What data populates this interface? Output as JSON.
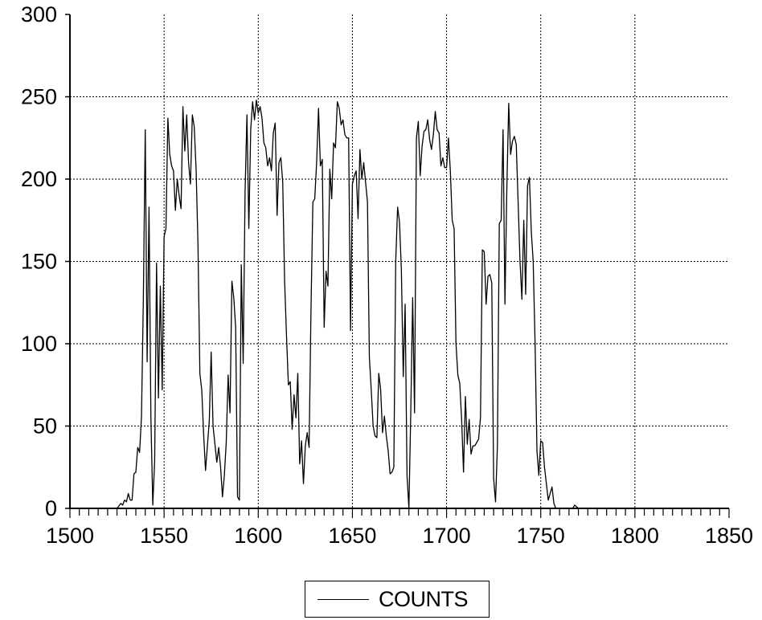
{
  "chart_data": {
    "type": "line",
    "xlim": [
      1500,
      1850
    ],
    "ylim": [
      0,
      300
    ],
    "x_ticks": [
      1500,
      1550,
      1600,
      1650,
      1700,
      1750,
      1800,
      1850
    ],
    "y_ticks": [
      0,
      50,
      100,
      150,
      200,
      250,
      300
    ],
    "grid": true,
    "legend_position": "bottom-center",
    "series": [
      {
        "name": "COUNTS",
        "color": "#000000",
        "points": [
          [
            1500,
            0
          ],
          [
            1510,
            0
          ],
          [
            1520,
            0
          ],
          [
            1525,
            0
          ],
          [
            1527,
            3
          ],
          [
            1528,
            2
          ],
          [
            1529,
            5
          ],
          [
            1530,
            4
          ],
          [
            1531,
            9
          ],
          [
            1532,
            5
          ],
          [
            1533,
            5
          ],
          [
            1534,
            21
          ],
          [
            1535,
            22
          ],
          [
            1536,
            37
          ],
          [
            1537,
            34
          ],
          [
            1538,
            56
          ],
          [
            1539,
            128
          ],
          [
            1540,
            230
          ],
          [
            1541,
            89
          ],
          [
            1542,
            183
          ],
          [
            1543,
            55
          ],
          [
            1544,
            2
          ],
          [
            1545,
            29
          ],
          [
            1546,
            149
          ],
          [
            1547,
            67
          ],
          [
            1548,
            135
          ],
          [
            1549,
            72
          ],
          [
            1550,
            165
          ],
          [
            1551,
            170
          ],
          [
            1552,
            237
          ],
          [
            1553,
            215
          ],
          [
            1554,
            208
          ],
          [
            1555,
            205
          ],
          [
            1556,
            181
          ],
          [
            1557,
            200
          ],
          [
            1558,
            190
          ],
          [
            1559,
            182
          ],
          [
            1560,
            244
          ],
          [
            1561,
            217
          ],
          [
            1562,
            239
          ],
          [
            1563,
            210
          ],
          [
            1564,
            197
          ],
          [
            1565,
            239
          ],
          [
            1566,
            232
          ],
          [
            1567,
            206
          ],
          [
            1568,
            160
          ],
          [
            1569,
            82
          ],
          [
            1570,
            72
          ],
          [
            1571,
            45
          ],
          [
            1572,
            23
          ],
          [
            1573,
            38
          ],
          [
            1574,
            53
          ],
          [
            1575,
            95
          ],
          [
            1576,
            50
          ],
          [
            1577,
            39
          ],
          [
            1578,
            28
          ],
          [
            1579,
            37
          ],
          [
            1580,
            25
          ],
          [
            1581,
            7
          ],
          [
            1582,
            20
          ],
          [
            1583,
            40
          ],
          [
            1584,
            81
          ],
          [
            1585,
            58
          ],
          [
            1586,
            138
          ],
          [
            1587,
            128
          ],
          [
            1588,
            110
          ],
          [
            1589,
            7
          ],
          [
            1590,
            5
          ],
          [
            1591,
            148
          ],
          [
            1592,
            88
          ],
          [
            1593,
            192
          ],
          [
            1594,
            239
          ],
          [
            1595,
            170
          ],
          [
            1596,
            230
          ],
          [
            1597,
            247
          ],
          [
            1598,
            236
          ],
          [
            1599,
            248
          ],
          [
            1600,
            240
          ],
          [
            1601,
            244
          ],
          [
            1602,
            237
          ],
          [
            1603,
            222
          ],
          [
            1604,
            219
          ],
          [
            1605,
            208
          ],
          [
            1606,
            213
          ],
          [
            1607,
            205
          ],
          [
            1608,
            228
          ],
          [
            1609,
            234
          ],
          [
            1610,
            178
          ],
          [
            1611,
            210
          ],
          [
            1612,
            213
          ],
          [
            1613,
            198
          ],
          [
            1614,
            138
          ],
          [
            1615,
            105
          ],
          [
            1616,
            75
          ],
          [
            1617,
            77
          ],
          [
            1618,
            48
          ],
          [
            1619,
            69
          ],
          [
            1620,
            55
          ],
          [
            1621,
            82
          ],
          [
            1622,
            27
          ],
          [
            1623,
            41
          ],
          [
            1624,
            15
          ],
          [
            1625,
            38
          ],
          [
            1626,
            46
          ],
          [
            1627,
            37
          ],
          [
            1628,
            120
          ],
          [
            1629,
            186
          ],
          [
            1630,
            188
          ],
          [
            1631,
            210
          ],
          [
            1632,
            243
          ],
          [
            1633,
            208
          ],
          [
            1634,
            212
          ],
          [
            1635,
            110
          ],
          [
            1636,
            144
          ],
          [
            1637,
            135
          ],
          [
            1638,
            206
          ],
          [
            1639,
            188
          ],
          [
            1640,
            222
          ],
          [
            1641,
            219
          ],
          [
            1642,
            247
          ],
          [
            1643,
            243
          ],
          [
            1644,
            233
          ],
          [
            1645,
            236
          ],
          [
            1646,
            227
          ],
          [
            1647,
            225
          ],
          [
            1648,
            225
          ],
          [
            1649,
            108
          ],
          [
            1650,
            197
          ],
          [
            1651,
            202
          ],
          [
            1652,
            205
          ],
          [
            1653,
            176
          ],
          [
            1654,
            218
          ],
          [
            1655,
            200
          ],
          [
            1656,
            210
          ],
          [
            1657,
            198
          ],
          [
            1658,
            186
          ],
          [
            1659,
            92
          ],
          [
            1660,
            72
          ],
          [
            1661,
            50
          ],
          [
            1662,
            44
          ],
          [
            1663,
            43
          ],
          [
            1664,
            82
          ],
          [
            1665,
            72
          ],
          [
            1666,
            46
          ],
          [
            1667,
            56
          ],
          [
            1668,
            44
          ],
          [
            1669,
            35
          ],
          [
            1670,
            21
          ],
          [
            1671,
            22
          ],
          [
            1672,
            25
          ],
          [
            1673,
            150
          ],
          [
            1674,
            183
          ],
          [
            1675,
            174
          ],
          [
            1676,
            145
          ],
          [
            1677,
            80
          ],
          [
            1678,
            124
          ],
          [
            1679,
            20
          ],
          [
            1680,
            0
          ],
          [
            1681,
            59
          ],
          [
            1682,
            128
          ],
          [
            1683,
            58
          ],
          [
            1684,
            225
          ],
          [
            1685,
            235
          ],
          [
            1686,
            202
          ],
          [
            1687,
            220
          ],
          [
            1688,
            229
          ],
          [
            1689,
            230
          ],
          [
            1690,
            236
          ],
          [
            1691,
            224
          ],
          [
            1692,
            218
          ],
          [
            1693,
            227
          ],
          [
            1694,
            241
          ],
          [
            1695,
            230
          ],
          [
            1696,
            228
          ],
          [
            1697,
            208
          ],
          [
            1698,
            213
          ],
          [
            1699,
            207
          ],
          [
            1700,
            207
          ],
          [
            1701,
            225
          ],
          [
            1702,
            205
          ],
          [
            1703,
            175
          ],
          [
            1704,
            170
          ],
          [
            1705,
            100
          ],
          [
            1706,
            81
          ],
          [
            1707,
            76
          ],
          [
            1708,
            54
          ],
          [
            1709,
            22
          ],
          [
            1710,
            68
          ],
          [
            1711,
            39
          ],
          [
            1712,
            54
          ],
          [
            1713,
            33
          ],
          [
            1714,
            38
          ],
          [
            1715,
            38
          ],
          [
            1716,
            40
          ],
          [
            1717,
            42
          ],
          [
            1718,
            55
          ],
          [
            1719,
            157
          ],
          [
            1720,
            156
          ],
          [
            1721,
            124
          ],
          [
            1722,
            141
          ],
          [
            1723,
            142
          ],
          [
            1724,
            137
          ],
          [
            1725,
            18
          ],
          [
            1726,
            4
          ],
          [
            1727,
            38
          ],
          [
            1728,
            173
          ],
          [
            1729,
            175
          ],
          [
            1730,
            230
          ],
          [
            1731,
            124
          ],
          [
            1732,
            194
          ],
          [
            1733,
            246
          ],
          [
            1734,
            215
          ],
          [
            1735,
            223
          ],
          [
            1736,
            226
          ],
          [
            1737,
            221
          ],
          [
            1738,
            186
          ],
          [
            1739,
            150
          ],
          [
            1740,
            127
          ],
          [
            1741,
            175
          ],
          [
            1742,
            130
          ],
          [
            1743,
            196
          ],
          [
            1744,
            201
          ],
          [
            1745,
            168
          ],
          [
            1746,
            150
          ],
          [
            1747,
            100
          ],
          [
            1748,
            35
          ],
          [
            1749,
            20
          ],
          [
            1750,
            41
          ],
          [
            1751,
            40
          ],
          [
            1752,
            25
          ],
          [
            1753,
            15
          ],
          [
            1754,
            5
          ],
          [
            1755,
            9
          ],
          [
            1756,
            13
          ],
          [
            1757,
            3
          ],
          [
            1758,
            0
          ],
          [
            1760,
            0
          ],
          [
            1765,
            0
          ],
          [
            1767,
            0
          ],
          [
            1768,
            2
          ],
          [
            1769,
            1
          ],
          [
            1770,
            0
          ],
          [
            1780,
            0
          ],
          [
            1800,
            0
          ],
          [
            1820,
            0
          ],
          [
            1850,
            0
          ]
        ]
      }
    ]
  }
}
